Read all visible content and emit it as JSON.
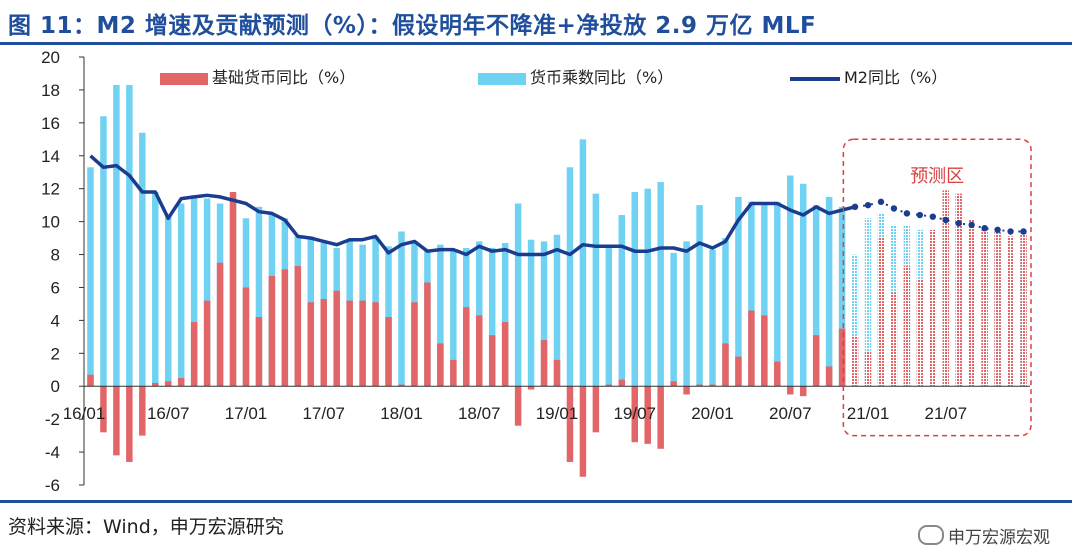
{
  "header": {
    "title": "图 11：M2 增速及贡献预测（%）：假设明年不降准+净投放 2.9 万亿 MLF"
  },
  "footer": {
    "source": "资料来源：Wind，申万宏源研究",
    "watermark": "申万宏源宏观",
    "watermark_icon": "wechat-icon"
  },
  "colors": {
    "base_money": "#e26567",
    "multiplier": "#6fd2f2",
    "m2": "#1a3d8f",
    "forecast_box": "#d94040",
    "title": "#1f4e9c"
  },
  "chart_data": {
    "type": "bar+line",
    "ylim": [
      -6,
      20
    ],
    "yticks": [
      -6,
      -4,
      -2,
      0,
      2,
      4,
      6,
      8,
      10,
      12,
      14,
      16,
      18,
      20
    ],
    "x_tick_labels": [
      "16/01",
      "16/07",
      "17/01",
      "17/07",
      "18/01",
      "18/07",
      "19/01",
      "19/07",
      "20/01",
      "20/07",
      "21/01",
      "21/07"
    ],
    "x_tick_positions": [
      0,
      6,
      12,
      18,
      24,
      30,
      36,
      42,
      48,
      54,
      60,
      66
    ],
    "forecast_start_index": 59,
    "forecast_label": "预测区",
    "series": [
      {
        "name": "基础货币同比（%）",
        "kind": "bar",
        "values": [
          0.7,
          -2.8,
          -4.2,
          -4.6,
          -3.0,
          0.2,
          0.3,
          0.5,
          3.9,
          5.2,
          7.5,
          11.8,
          6.0,
          4.2,
          6.7,
          7.1,
          7.3,
          5.1,
          5.3,
          5.8,
          5.2,
          5.2,
          5.1,
          4.2,
          0.1,
          5.1,
          6.3,
          2.6,
          1.6,
          4.8,
          4.3,
          3.1,
          3.9,
          -2.4,
          -0.2,
          2.8,
          1.6,
          -4.6,
          -5.5,
          -2.8,
          0.1,
          0.4,
          -3.4,
          -3.5,
          -3.8,
          0.3,
          -0.5,
          0.1,
          0.1,
          2.6,
          1.8,
          4.6,
          4.3,
          1.5,
          -0.5,
          -0.6,
          3.1,
          1.2,
          3.5,
          3.0,
          2.1,
          9.0,
          5.7,
          7.3,
          6.5,
          9.5,
          11.9,
          11.7,
          10.1,
          9.5,
          9.4,
          9.1,
          9.3
        ]
      },
      {
        "name": "货币乘数同比（%）",
        "kind": "bar",
        "values": [
          13.3,
          16.4,
          18.3,
          18.3,
          15.4,
          11.8,
          10.3,
          11.1,
          11.6,
          11.4,
          11.1,
          11.3,
          10.2,
          10.9,
          10.5,
          10.2,
          9.1,
          9.1,
          8.7,
          8.4,
          8.9,
          8.6,
          9.1,
          8.5,
          9.4,
          8.8,
          8.3,
          8.6,
          8.3,
          8.4,
          8.8,
          8.4,
          8.7,
          11.1,
          8.9,
          8.8,
          9.2,
          13.3,
          15.0,
          11.7,
          8.6,
          10.4,
          11.8,
          12.0,
          12.4,
          8.1,
          8.8,
          11.0,
          8.3,
          9.0,
          11.5,
          11.2,
          11.0,
          11.2,
          12.8,
          12.3,
          11.0,
          11.5,
          10.9,
          8.0,
          10.2,
          10.5,
          9.8,
          9.8,
          9.5,
          8.2,
          7.2,
          8.3,
          9.0,
          8.7,
          8.5,
          8.8,
          8.3
        ]
      },
      {
        "name": "M2同比（%）",
        "kind": "line",
        "values": [
          14.0,
          13.3,
          13.4,
          12.8,
          11.8,
          11.8,
          10.2,
          11.4,
          11.5,
          11.6,
          11.5,
          11.3,
          11.1,
          10.6,
          10.5,
          10.1,
          9.1,
          9.0,
          8.8,
          8.6,
          8.9,
          8.9,
          9.1,
          8.1,
          8.6,
          8.8,
          8.2,
          8.3,
          8.3,
          8.0,
          8.5,
          8.2,
          8.3,
          8.0,
          8.0,
          8.0,
          8.3,
          8.0,
          8.6,
          8.5,
          8.5,
          8.5,
          8.2,
          8.2,
          8.4,
          8.4,
          8.2,
          8.7,
          8.4,
          8.8,
          10.1,
          11.1,
          11.1,
          11.1,
          10.7,
          10.4,
          10.9,
          10.5,
          10.7,
          10.9,
          11.0,
          11.2,
          10.8,
          10.5,
          10.4,
          10.3,
          10.1,
          9.9,
          9.8,
          9.6,
          9.5,
          9.4,
          9.4
        ]
      }
    ]
  }
}
